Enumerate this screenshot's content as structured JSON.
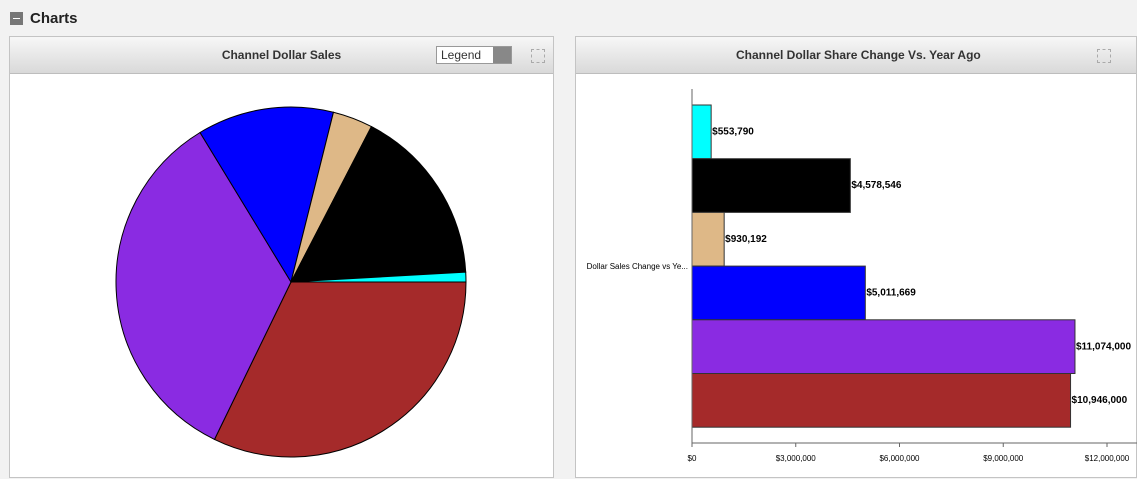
{
  "header": {
    "title": "Charts"
  },
  "controls": {
    "legend_select": "Legend"
  },
  "chart_data": [
    {
      "type": "pie",
      "title": "Channel Dollar Sales",
      "values": [
        32.2,
        34.1,
        12.6,
        3.7,
        16.5,
        0.9
      ],
      "colors": [
        "#a52a2a",
        "#8a2be2",
        "#0000ff",
        "#deb887",
        "#000000",
        "#00ffff"
      ]
    },
    {
      "type": "hbar",
      "title": "Channel Dollar Share Change Vs. Year Ago",
      "categories": [
        "Dollar Sales Change vs Ye..."
      ],
      "series": [
        {
          "color": "#00ffff",
          "values": [
            553790
          ],
          "value_labels": [
            "$553,790"
          ]
        },
        {
          "color": "#000000",
          "values": [
            4578546
          ],
          "value_labels": [
            "$4,578,546"
          ]
        },
        {
          "color": "#deb887",
          "values": [
            930192
          ],
          "value_labels": [
            "$930,192"
          ]
        },
        {
          "color": "#0000ff",
          "values": [
            5011669
          ],
          "value_labels": [
            "$5,011,669"
          ]
        },
        {
          "color": "#8a2be2",
          "values": [
            11074000
          ],
          "value_labels": [
            "$11,074,000"
          ]
        },
        {
          "color": "#a52a2a",
          "values": [
            10946000
          ],
          "value_labels": [
            "$10,946,000"
          ]
        }
      ],
      "xlim": [
        0,
        12000000
      ],
      "xticks": [
        {
          "value": 0,
          "label": "$0"
        },
        {
          "value": 3000000,
          "label": "$3,000,000"
        },
        {
          "value": 6000000,
          "label": "$6,000,000"
        },
        {
          "value": 9000000,
          "label": "$9,000,000"
        },
        {
          "value": 12000000,
          "label": "$12,000,000"
        }
      ]
    }
  ]
}
